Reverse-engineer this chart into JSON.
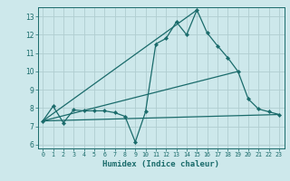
{
  "title": "",
  "xlabel": "Humidex (Indice chaleur)",
  "ylabel": "",
  "bg_color": "#cde8eb",
  "grid_color": "#b0cdd0",
  "line_color": "#1a6b6b",
  "xlim": [
    -0.5,
    23.5
  ],
  "ylim": [
    5.8,
    13.5
  ],
  "xticks": [
    0,
    1,
    2,
    3,
    4,
    5,
    6,
    7,
    8,
    9,
    10,
    11,
    12,
    13,
    14,
    15,
    16,
    17,
    18,
    19,
    20,
    21,
    22,
    23
  ],
  "yticks": [
    6,
    7,
    8,
    9,
    10,
    11,
    12,
    13
  ],
  "main_curve_x": [
    0,
    1,
    2,
    3,
    4,
    5,
    6,
    7,
    8,
    9,
    10,
    11,
    12,
    13,
    14,
    15,
    16,
    17,
    18,
    19,
    20,
    21,
    22,
    23
  ],
  "main_curve_y": [
    7.3,
    8.1,
    7.2,
    7.9,
    7.85,
    7.85,
    7.85,
    7.75,
    7.55,
    6.15,
    7.8,
    11.5,
    11.8,
    12.7,
    12.0,
    13.35,
    12.1,
    11.4,
    10.75,
    10.0,
    8.5,
    7.95,
    7.8,
    7.65
  ],
  "line1_x": [
    0,
    15
  ],
  "line1_y": [
    7.3,
    13.35
  ],
  "line2_x": [
    0,
    19
  ],
  "line2_y": [
    7.3,
    10.0
  ],
  "line3_x": [
    0,
    23
  ],
  "line3_y": [
    7.3,
    7.65
  ]
}
